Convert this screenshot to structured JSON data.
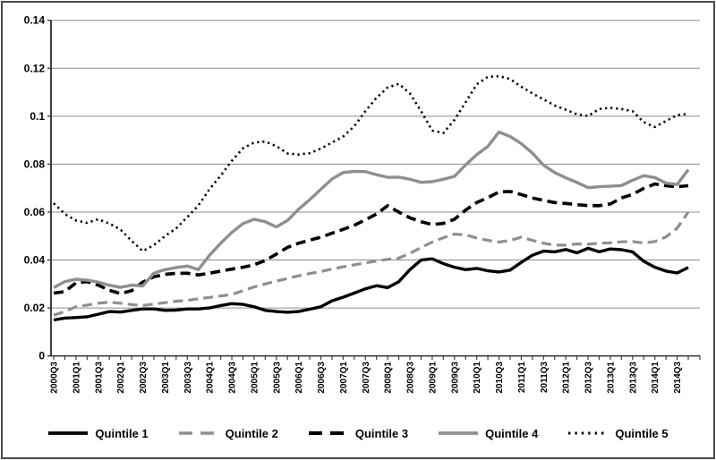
{
  "figure": {
    "background": "#ffffff",
    "border_color": "#4a4a4a",
    "gridline_color": "#8c8c8c",
    "axis_color": "#3f3f3f",
    "gray_series_color": "#8f8f8f",
    "black_series_color": "#000000"
  },
  "chart_data": {
    "type": "line",
    "title": "",
    "xlabel": "",
    "ylabel": "",
    "grid": "horizontal",
    "legend_position": "bottom",
    "ylim": [
      0,
      0.14
    ],
    "y_ticks": [
      0,
      0.02,
      0.04,
      0.06,
      0.08,
      0.1,
      0.12,
      0.14
    ],
    "y_tick_labels": [
      "0",
      "0.02",
      "0.04",
      "0.06",
      "0.08",
      "0.1",
      "0.12",
      "0.14"
    ],
    "x_tick_label_every": 2,
    "x_categories": [
      "2000Q3",
      "2000Q4",
      "2001Q1",
      "2001Q2",
      "2001Q3",
      "2001Q4",
      "2002Q1",
      "2002Q2",
      "2002Q3",
      "2002Q4",
      "2003Q1",
      "2003Q2",
      "2003Q3",
      "2003Q4",
      "2004Q1",
      "2004Q2",
      "2004Q3",
      "2004Q4",
      "2005Q1",
      "2005Q2",
      "2005Q3",
      "2005Q4",
      "2006Q1",
      "2006Q2",
      "2006Q3",
      "2006Q4",
      "2007Q1",
      "2007Q2",
      "2007Q3",
      "2007Q4",
      "2008Q1",
      "2008Q2",
      "2008Q3",
      "2008Q4",
      "2009Q1",
      "2009Q2",
      "2009Q3",
      "2009Q4",
      "2010Q1",
      "2010Q2",
      "2010Q3",
      "2010Q4",
      "2011Q1",
      "2011Q2",
      "2011Q3",
      "2011Q4",
      "2012Q1",
      "2012Q2",
      "2012Q3",
      "2012Q4",
      "2013Q1",
      "2013Q2",
      "2013Q3",
      "2013Q4",
      "2014Q1",
      "2014Q2",
      "2014Q3",
      "2014Q4"
    ],
    "series": [
      {
        "name": "Quintile 1",
        "color": "#000000",
        "style": "solid",
        "width": 3.4,
        "values": [
          0.015,
          0.0158,
          0.016,
          0.0163,
          0.0174,
          0.0185,
          0.0183,
          0.019,
          0.0196,
          0.0196,
          0.019,
          0.0191,
          0.0196,
          0.0196,
          0.02,
          0.021,
          0.0218,
          0.0215,
          0.0205,
          0.019,
          0.0185,
          0.0182,
          0.0185,
          0.0195,
          0.0205,
          0.023,
          0.0245,
          0.0262,
          0.028,
          0.0293,
          0.0285,
          0.031,
          0.036,
          0.04,
          0.0405,
          0.0385,
          0.037,
          0.036,
          0.0365,
          0.0355,
          0.035,
          0.0358,
          0.039,
          0.042,
          0.0437,
          0.0434,
          0.0444,
          0.043,
          0.0449,
          0.0434,
          0.0446,
          0.0443,
          0.0434,
          0.0395,
          0.037,
          0.0354,
          0.0346,
          0.0369
        ]
      },
      {
        "name": "Quintile 2",
        "color": "#8f8f8f",
        "style": "dashed",
        "width": 3.2,
        "values": [
          0.017,
          0.0185,
          0.0205,
          0.0212,
          0.022,
          0.0224,
          0.022,
          0.0214,
          0.021,
          0.0216,
          0.0222,
          0.0228,
          0.0232,
          0.0238,
          0.0244,
          0.025,
          0.0256,
          0.0272,
          0.0288,
          0.03,
          0.0312,
          0.0323,
          0.0334,
          0.0344,
          0.0352,
          0.0362,
          0.0372,
          0.038,
          0.0388,
          0.0396,
          0.0403,
          0.0408,
          0.0428,
          0.0452,
          0.0475,
          0.0493,
          0.0508,
          0.0505,
          0.0492,
          0.0482,
          0.0475,
          0.0482,
          0.0495,
          0.0482,
          0.047,
          0.0462,
          0.0462,
          0.0467,
          0.0466,
          0.047,
          0.0472,
          0.0476,
          0.0477,
          0.0471,
          0.0477,
          0.0496,
          0.0533,
          0.06
        ]
      },
      {
        "name": "Quintile 3",
        "color": "#000000",
        "style": "dashed",
        "width": 3.6,
        "values": [
          0.0262,
          0.0268,
          0.0305,
          0.031,
          0.0295,
          0.0274,
          0.026,
          0.0272,
          0.0308,
          0.033,
          0.034,
          0.0345,
          0.0345,
          0.0338,
          0.0345,
          0.0354,
          0.0362,
          0.037,
          0.038,
          0.0398,
          0.0425,
          0.0453,
          0.047,
          0.0483,
          0.0495,
          0.0512,
          0.0528,
          0.0545,
          0.0568,
          0.0592,
          0.0627,
          0.06,
          0.0576,
          0.056,
          0.0548,
          0.0553,
          0.057,
          0.0608,
          0.064,
          0.066,
          0.0684,
          0.0686,
          0.0673,
          0.0659,
          0.0649,
          0.064,
          0.0636,
          0.0631,
          0.0627,
          0.0627,
          0.0634,
          0.0659,
          0.0674,
          0.0699,
          0.0717,
          0.071,
          0.0706,
          0.071
        ]
      },
      {
        "name": "Quintile 4",
        "color": "#8f8f8f",
        "style": "solid",
        "width": 3.4,
        "values": [
          0.0285,
          0.031,
          0.032,
          0.0316,
          0.0308,
          0.0295,
          0.0286,
          0.0295,
          0.0292,
          0.0345,
          0.036,
          0.0369,
          0.0375,
          0.036,
          0.042,
          0.047,
          0.0515,
          0.0552,
          0.057,
          0.056,
          0.0538,
          0.0565,
          0.0612,
          0.0652,
          0.0695,
          0.0738,
          0.0765,
          0.077,
          0.0769,
          0.0756,
          0.0745,
          0.0746,
          0.0737,
          0.0724,
          0.0727,
          0.0737,
          0.0749,
          0.0797,
          0.084,
          0.0874,
          0.0934,
          0.0915,
          0.0886,
          0.0846,
          0.0796,
          0.0765,
          0.0743,
          0.0724,
          0.0702,
          0.0706,
          0.0708,
          0.0711,
          0.0733,
          0.0752,
          0.0744,
          0.0721,
          0.0715,
          0.0777
        ]
      },
      {
        "name": "Quintile 5",
        "color": "#000000",
        "style": "dotted",
        "width": 2.6,
        "values": [
          0.0637,
          0.0592,
          0.0565,
          0.0555,
          0.057,
          0.0552,
          0.0527,
          0.048,
          0.0437,
          0.0462,
          0.05,
          0.0532,
          0.0579,
          0.0628,
          0.0696,
          0.0752,
          0.0814,
          0.0866,
          0.089,
          0.0894,
          0.0875,
          0.0845,
          0.084,
          0.0846,
          0.0865,
          0.089,
          0.0915,
          0.0958,
          0.1021,
          0.1077,
          0.112,
          0.1135,
          0.1095,
          0.1021,
          0.094,
          0.093,
          0.0985,
          0.1058,
          0.1133,
          0.1164,
          0.1167,
          0.1155,
          0.1123,
          0.1095,
          0.107,
          0.1045,
          0.1027,
          0.1008,
          0.1001,
          0.103,
          0.1035,
          0.103,
          0.1021,
          0.0975,
          0.0955,
          0.098,
          0.1005,
          0.101
        ]
      }
    ]
  }
}
